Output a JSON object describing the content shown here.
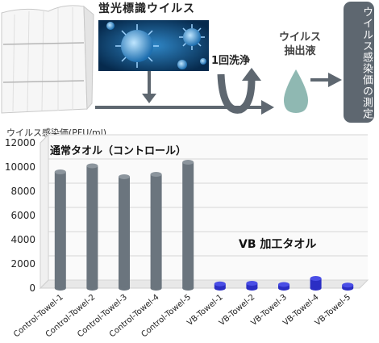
{
  "process": {
    "fluorescent_label": "蛍光標識ウイルス",
    "wash": "1回洗浄",
    "virus_liquid_line1": "ウイルス",
    "virus_liquid_line2": "抽出液",
    "measure": "ウイルス感染価の測定"
  },
  "colors": {
    "control_bar": "#6b757e",
    "vb_bar": "#2b2ec4",
    "droplet": "#8fb8b2",
    "arrow": "#5e6770",
    "panel": "#5e6770",
    "virus_bg": "#0b4e86"
  },
  "chart_data": {
    "type": "bar",
    "ylabel": "ウイルス感染価(PFU/ml)",
    "ylim": [
      0,
      12000
    ],
    "yticks": [
      0,
      2000,
      4000,
      6000,
      8000,
      10000,
      12000
    ],
    "grid": true,
    "groups": [
      {
        "label": "通常タオル（コントロール）",
        "kind": "control"
      },
      {
        "label": "VB 加工タオル",
        "kind": "vb"
      }
    ],
    "categories": [
      "Control-Towel-1",
      "Control-Towel-2",
      "Control-Towel-3",
      "Control-Towel-4",
      "Control-Towel-5",
      "VB-Towel-1",
      "VB-Towel-2",
      "VB-Towel-3",
      "VB-Towel-4",
      "VB-Towel-5"
    ],
    "values": [
      9600,
      10100,
      9200,
      9400,
      10400,
      350,
      400,
      300,
      800,
      250
    ]
  }
}
